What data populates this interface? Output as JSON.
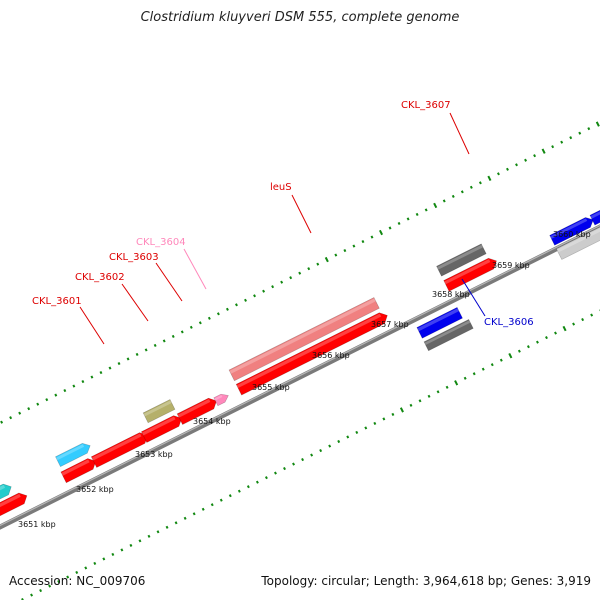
{
  "title": "Clostridium kluyveri DSM 555, complete genome",
  "footer": {
    "accession": "Accession: NC_009706",
    "topology": "Topology: circular; Length: 3,964,618 bp; Genes: 3,919"
  },
  "kbp_ticks": [
    {
      "pos": 3651,
      "label": "3651 kbp"
    },
    {
      "pos": 3652,
      "label": "3652 kbp"
    },
    {
      "pos": 3653,
      "label": "3653 kbp"
    },
    {
      "pos": 3654,
      "label": "3654 kbp"
    },
    {
      "pos": 3655,
      "label": "3655 kbp"
    },
    {
      "pos": 3656,
      "label": "3656 kbp"
    },
    {
      "pos": 3657,
      "label": "3657 kbp"
    },
    {
      "pos": 3658,
      "label": "3658 kbp"
    },
    {
      "pos": 3659,
      "label": "3659 kbp"
    },
    {
      "pos": 3660,
      "label": "3660 kbp"
    }
  ],
  "genes": [
    {
      "label": "CKL_3601",
      "color": "#dd0000"
    },
    {
      "label": "CKL_3602",
      "color": "#dd0000"
    },
    {
      "label": "CKL_3603",
      "color": "#dd0000"
    },
    {
      "label": "CKL_3604",
      "color": "#ff88bb"
    },
    {
      "label": "leuS",
      "color": "#dd0000"
    },
    {
      "label": "CKL_3606",
      "color": "#0000cc"
    },
    {
      "label": "CKL_3607",
      "color": "#dd0000"
    }
  ],
  "colors": {
    "cds": "#ff0000",
    "cds_pink": "#f08080",
    "olive": "#b5b06a",
    "cyan": "#33ccff",
    "teal": "#22cccc",
    "blue": "#0000ee",
    "gray": "#666666",
    "lightgray": "#cccccc",
    "tick_green": "#118811",
    "backbone": "#7a7a7a"
  }
}
